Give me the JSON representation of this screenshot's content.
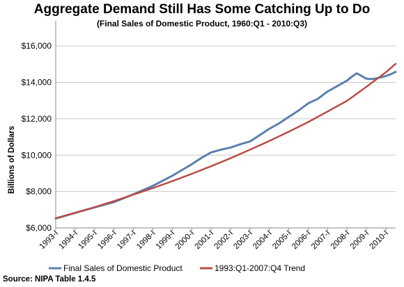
{
  "chart_data": {
    "type": "line",
    "title": "Aggregate Demand Still Has Some Catching Up to Do",
    "subtitle": "(Final Sales of Domestic Product, 1960:Q1 - 2010:Q3)",
    "xlabel": "",
    "ylabel": "Billions of Dollars",
    "ylim": [
      6000,
      17000
    ],
    "yticks": [
      6000,
      8000,
      10000,
      12000,
      14000,
      16000
    ],
    "ytick_labels": [
      "$6,000",
      "$8,000",
      "$10,000",
      "$12,000",
      "$14,000",
      "$16,000"
    ],
    "xticks": [
      1993,
      1994,
      1995,
      1996,
      1997,
      1998,
      1999,
      2000,
      2001,
      2002,
      2003,
      2004,
      2005,
      2006,
      2007,
      2008,
      2009,
      2010
    ],
    "xtick_labels": [
      "1993-I",
      "1994-I",
      "1995-I",
      "1996-I",
      "1997-I",
      "1998-I",
      "1999-I",
      "2000-I",
      "2001-I",
      "2002-I",
      "2003-I",
      "2004-I",
      "2005-I",
      "2006-I",
      "2007-I",
      "2008-I",
      "2009-I",
      "2010-I"
    ],
    "xlim": [
      1993,
      2010.5
    ],
    "grid": "horizontal",
    "legend_position": "bottom",
    "series": [
      {
        "name": "Final Sales of Domestic Product",
        "color": "#5b7fb0",
        "x": [
          1993,
          1994,
          1995,
          1996,
          1997,
          1998,
          1999,
          2000,
          2000.5,
          2001,
          2001.5,
          2002,
          2002.5,
          2003,
          2003.5,
          2004,
          2004.5,
          2005,
          2005.5,
          2006,
          2006.5,
          2007,
          2007.5,
          2008,
          2008.25,
          2008.5,
          2008.75,
          2009,
          2009.25,
          2009.5,
          2009.75,
          2010,
          2010.25,
          2010.5
        ],
        "y": [
          6520,
          6830,
          7130,
          7420,
          7850,
          8310,
          8870,
          9500,
          9850,
          10150,
          10300,
          10420,
          10600,
          10750,
          11100,
          11450,
          11750,
          12100,
          12450,
          12850,
          13100,
          13500,
          13800,
          14100,
          14320,
          14500,
          14350,
          14200,
          14180,
          14220,
          14280,
          14350,
          14450,
          14580
        ]
      },
      {
        "name": "1993:Q1-2007:Q4 Trend",
        "color": "#b94d44",
        "x": [
          1993,
          1994,
          1995,
          1996,
          1997,
          1998,
          1999,
          2000,
          2001,
          2002,
          2003,
          2004,
          2005,
          2006,
          2007,
          2008,
          2009,
          2010,
          2010.5
        ],
        "y": [
          6530,
          6830,
          7140,
          7480,
          7830,
          8190,
          8570,
          8970,
          9390,
          9830,
          10300,
          10780,
          11290,
          11820,
          12400,
          12990,
          13760,
          14560,
          15020
        ]
      }
    ]
  },
  "source": "Source: NIPA Table 1.4.5"
}
